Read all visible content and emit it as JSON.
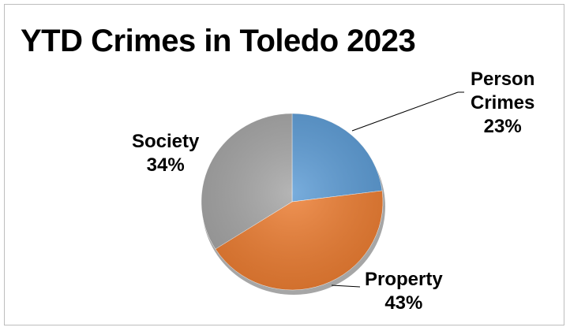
{
  "chart_data": {
    "type": "pie",
    "title": "YTD Crimes in Toledo 2023",
    "slices": [
      {
        "label": "Person Crimes",
        "label_lines": [
          "Person",
          "Crimes"
        ],
        "percent_text": "23%",
        "value": 23,
        "color": "#5b9bd5"
      },
      {
        "label": "Property",
        "label_lines": [
          "Property"
        ],
        "percent_text": "43%",
        "value": 43,
        "color": "#ed7d31"
      },
      {
        "label": "Society",
        "label_lines": [
          "Society"
        ],
        "percent_text": "34%",
        "value": 34,
        "color": "#a5a5a5"
      }
    ],
    "start_angle_deg": 0,
    "direction": "clockwise",
    "labels": "outside, with leader lines for Person Crimes and Property"
  }
}
